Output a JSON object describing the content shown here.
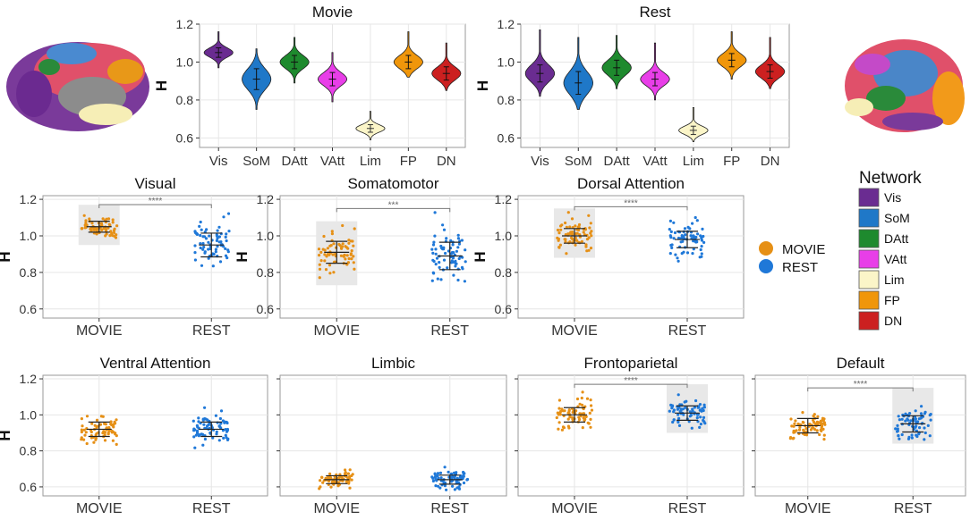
{
  "colors": {
    "Vis": "#6a2c91",
    "SoM": "#1f78c8",
    "DAtt": "#1e8a2e",
    "VAtt": "#e83ee8",
    "Lim": "#fbf5c8",
    "FP": "#f0960a",
    "DN": "#cc2020",
    "MOVIE": "#e69016",
    "REST": "#1f78d8",
    "highlight": "#e8e8e8",
    "grid": "#e6e6e6",
    "panel_border": "#9a9a9a"
  },
  "legend": {
    "condition_items": [
      {
        "label": "MOVIE",
        "color_key": "MOVIE"
      },
      {
        "label": "REST",
        "color_key": "REST"
      }
    ],
    "network_title": "Network",
    "network_items": [
      {
        "label": "Vis",
        "color_key": "Vis"
      },
      {
        "label": "SoM",
        "color_key": "SoM"
      },
      {
        "label": "DAtt",
        "color_key": "DAtt"
      },
      {
        "label": "VAtt",
        "color_key": "VAtt"
      },
      {
        "label": "Lim",
        "color_key": "Lim"
      },
      {
        "label": "FP",
        "color_key": "FP"
      },
      {
        "label": "DN",
        "color_key": "DN"
      }
    ]
  },
  "chart_data": [
    {
      "type": "violin",
      "title": "Movie",
      "ylabel": "H",
      "ylim": [
        0.55,
        1.2
      ],
      "yticks": [
        0.6,
        0.8,
        1.0,
        1.2
      ],
      "yticklabels": [
        "0.6",
        "0.8",
        "1.0",
        "1.2"
      ],
      "categories": [
        "Vis",
        "SoM",
        "DAtt",
        "VAtt",
        "Lim",
        "FP",
        "DN"
      ],
      "distributions": [
        {
          "name": "Vis",
          "mean": 1.05,
          "sd": 0.025,
          "min": 0.97,
          "max": 1.16
        },
        {
          "name": "SoM",
          "mean": 0.91,
          "sd": 0.055,
          "min": 0.75,
          "max": 1.07
        },
        {
          "name": "DAtt",
          "mean": 1.0,
          "sd": 0.035,
          "min": 0.89,
          "max": 1.13
        },
        {
          "name": "VAtt",
          "mean": 0.91,
          "sd": 0.035,
          "min": 0.79,
          "max": 1.05
        },
        {
          "name": "Lim",
          "mean": 0.65,
          "sd": 0.02,
          "min": 0.59,
          "max": 0.74
        },
        {
          "name": "FP",
          "mean": 1.0,
          "sd": 0.035,
          "min": 0.92,
          "max": 1.16
        },
        {
          "name": "DN",
          "mean": 0.94,
          "sd": 0.035,
          "min": 0.85,
          "max": 1.1
        }
      ]
    },
    {
      "type": "violin",
      "title": "Rest",
      "ylabel": "H",
      "ylim": [
        0.55,
        1.2
      ],
      "yticks": [
        0.6,
        0.8,
        1.0,
        1.2
      ],
      "yticklabels": [
        "0.6",
        "0.8",
        "1.0",
        "1.2"
      ],
      "categories": [
        "Vis",
        "SoM",
        "DAtt",
        "VAtt",
        "Lim",
        "FP",
        "DN"
      ],
      "distributions": [
        {
          "name": "Vis",
          "mean": 0.94,
          "sd": 0.045,
          "min": 0.82,
          "max": 1.17
        },
        {
          "name": "SoM",
          "mean": 0.89,
          "sd": 0.06,
          "min": 0.75,
          "max": 1.13
        },
        {
          "name": "DAtt",
          "mean": 0.97,
          "sd": 0.04,
          "min": 0.86,
          "max": 1.14
        },
        {
          "name": "VAtt",
          "mean": 0.91,
          "sd": 0.035,
          "min": 0.8,
          "max": 1.1
        },
        {
          "name": "Lim",
          "mean": 0.64,
          "sd": 0.022,
          "min": 0.58,
          "max": 0.76
        },
        {
          "name": "FP",
          "mean": 1.01,
          "sd": 0.035,
          "min": 0.91,
          "max": 1.16
        },
        {
          "name": "DN",
          "mean": 0.95,
          "sd": 0.035,
          "min": 0.86,
          "max": 1.13
        }
      ]
    },
    {
      "type": "scatter",
      "title": "Visual",
      "ylabel": "H",
      "ylim": [
        0.55,
        1.22
      ],
      "yticks": [
        0.6,
        0.8,
        1.0,
        1.2
      ],
      "yticklabels": [
        "0.6",
        "0.8",
        "1.0",
        "1.2"
      ],
      "categories": [
        "MOVIE",
        "REST"
      ],
      "groups": [
        {
          "name": "MOVIE",
          "mean": 1.05,
          "sd": 0.03,
          "min": 0.97,
          "max": 1.15
        },
        {
          "name": "REST",
          "mean": 0.95,
          "sd": 0.065,
          "min": 0.83,
          "max": 1.17
        }
      ],
      "highlight": "MOVIE",
      "significance": "****"
    },
    {
      "type": "scatter",
      "title": "Somatomotor",
      "ylabel": "H",
      "ylim": [
        0.55,
        1.22
      ],
      "yticks": [
        0.6,
        0.8,
        1.0,
        1.2
      ],
      "yticklabels": [
        "0.6",
        "0.8",
        "1.0",
        "1.2"
      ],
      "categories": [
        "MOVIE",
        "REST"
      ],
      "groups": [
        {
          "name": "MOVIE",
          "mean": 0.91,
          "sd": 0.06,
          "min": 0.75,
          "max": 1.06
        },
        {
          "name": "REST",
          "mean": 0.89,
          "sd": 0.075,
          "min": 0.75,
          "max": 1.13
        }
      ],
      "highlight": "MOVIE",
      "significance": "***"
    },
    {
      "type": "scatter",
      "title": "Dorsal Attention",
      "ylabel": "H",
      "ylim": [
        0.55,
        1.22
      ],
      "yticks": [
        0.6,
        0.8,
        1.0,
        1.2
      ],
      "yticklabels": [
        "0.6",
        "0.8",
        "1.0",
        "1.2"
      ],
      "categories": [
        "MOVIE",
        "REST"
      ],
      "groups": [
        {
          "name": "MOVIE",
          "mean": 1.0,
          "sd": 0.04,
          "min": 0.9,
          "max": 1.13
        },
        {
          "name": "REST",
          "mean": 0.98,
          "sd": 0.045,
          "min": 0.86,
          "max": 1.14
        }
      ],
      "highlight": "MOVIE",
      "significance": "****"
    },
    {
      "type": "scatter",
      "title": "Ventral Attention",
      "ylabel": "H",
      "ylim": [
        0.55,
        1.22
      ],
      "yticks": [
        0.6,
        0.8,
        1.0,
        1.2
      ],
      "yticklabels": [
        "0.6",
        "0.8",
        "1.0",
        "1.2"
      ],
      "categories": [
        "MOVIE",
        "REST"
      ],
      "groups": [
        {
          "name": "MOVIE",
          "mean": 0.92,
          "sd": 0.04,
          "min": 0.8,
          "max": 1.06
        },
        {
          "name": "REST",
          "mean": 0.92,
          "sd": 0.04,
          "min": 0.81,
          "max": 1.1
        }
      ],
      "highlight": null,
      "significance": ""
    },
    {
      "type": "scatter",
      "title": "Limbic",
      "ylabel": "",
      "ylim": [
        0.55,
        1.22
      ],
      "yticks": [
        0.6,
        0.8,
        1.0,
        1.2
      ],
      "yticklabels": [
        "",
        "",
        "",
        ""
      ],
      "categories": [
        "MOVIE",
        "REST"
      ],
      "groups": [
        {
          "name": "MOVIE",
          "mean": 0.64,
          "sd": 0.022,
          "min": 0.59,
          "max": 0.73
        },
        {
          "name": "REST",
          "mean": 0.64,
          "sd": 0.025,
          "min": 0.58,
          "max": 0.76
        }
      ],
      "highlight": null,
      "significance": ""
    },
    {
      "type": "scatter",
      "title": "Frontoparietal",
      "ylabel": "",
      "ylim": [
        0.55,
        1.22
      ],
      "yticks": [
        0.6,
        0.8,
        1.0,
        1.2
      ],
      "yticklabels": [
        "",
        "",
        "",
        ""
      ],
      "categories": [
        "MOVIE",
        "REST"
      ],
      "groups": [
        {
          "name": "MOVIE",
          "mean": 1.0,
          "sd": 0.04,
          "min": 0.91,
          "max": 1.13
        },
        {
          "name": "REST",
          "mean": 1.01,
          "sd": 0.04,
          "min": 0.92,
          "max": 1.15
        }
      ],
      "highlight": "REST",
      "significance": "****"
    },
    {
      "type": "scatter",
      "title": "Default",
      "ylabel": "",
      "ylim": [
        0.55,
        1.22
      ],
      "yticks": [
        0.6,
        0.8,
        1.0,
        1.2
      ],
      "yticklabels": [
        "",
        "",
        "",
        ""
      ],
      "categories": [
        "MOVIE",
        "REST"
      ],
      "groups": [
        {
          "name": "MOVIE",
          "mean": 0.94,
          "sd": 0.04,
          "min": 0.85,
          "max": 1.07
        },
        {
          "name": "REST",
          "mean": 0.95,
          "sd": 0.045,
          "min": 0.86,
          "max": 1.13
        }
      ],
      "highlight": "REST",
      "significance": "****"
    }
  ]
}
